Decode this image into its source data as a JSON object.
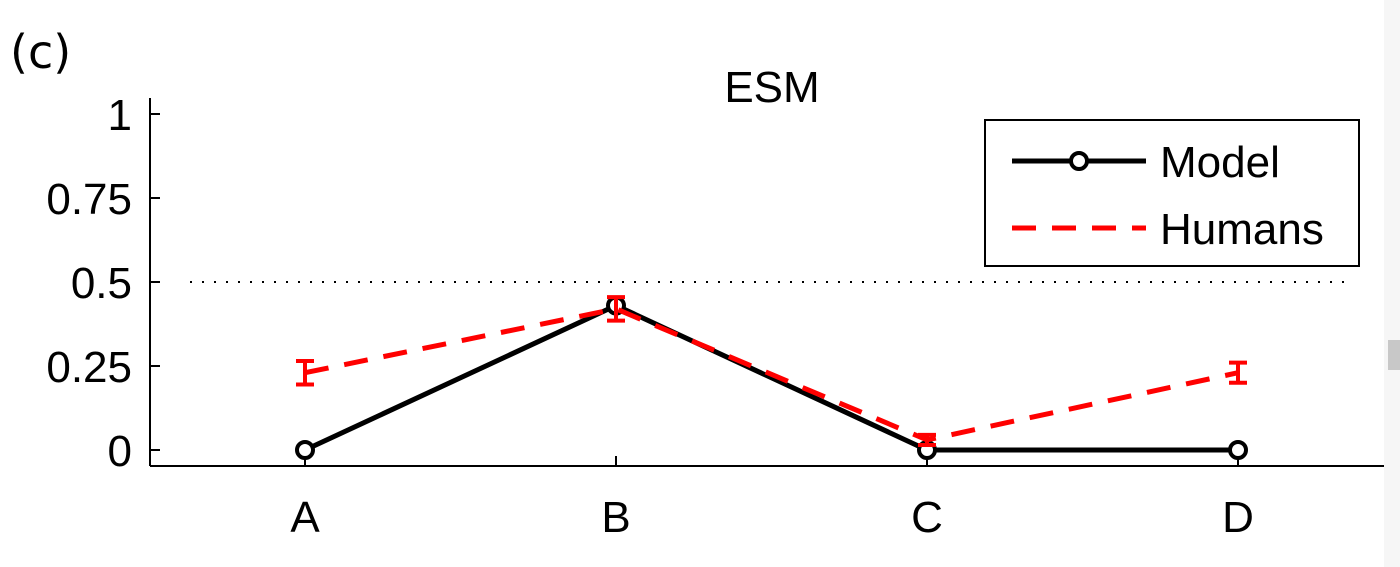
{
  "panel_label": "(c)",
  "chart_data": {
    "type": "line",
    "title": "ESM",
    "categories": [
      "A",
      "B",
      "C",
      "D"
    ],
    "ylim": [
      0,
      1
    ],
    "yticks": [
      0,
      0.25,
      0.5,
      0.75,
      1
    ],
    "ytick_labels": [
      "0",
      "0.25",
      "0.5",
      "0.75",
      "1"
    ],
    "reference_line": {
      "y": 0.5,
      "style": "dotted"
    },
    "legend_position": "top-right",
    "series": [
      {
        "name": "Model",
        "values": [
          0,
          0.43,
          0,
          0
        ],
        "color": "#000000",
        "style": "solid",
        "marker": "circle"
      },
      {
        "name": "Humans",
        "values": [
          0.23,
          0.42,
          0.03,
          0.23
        ],
        "errors": [
          0.035,
          0.035,
          0.015,
          0.03
        ],
        "color": "#ff0000",
        "style": "dashed"
      }
    ]
  }
}
